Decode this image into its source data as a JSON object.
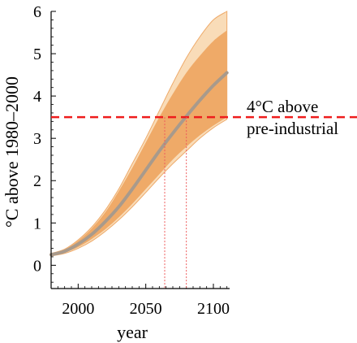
{
  "chart_data": {
    "type": "area",
    "xlabel": "year",
    "ylabel": "°C above 1980–2000",
    "xlim": [
      1980,
      2112
    ],
    "ylim": [
      -0.55,
      6
    ],
    "x_ticks": [
      2000,
      2050,
      2100
    ],
    "x_tick_labels": [
      "2000",
      "2050",
      "2100"
    ],
    "y_ticks": [
      0,
      1,
      2,
      3,
      4,
      5,
      6
    ],
    "y_tick_labels": [
      "0",
      "1",
      "2",
      "3",
      "4",
      "5",
      "6"
    ],
    "x": [
      1980,
      1990,
      2000,
      2010,
      2020,
      2030,
      2040,
      2050,
      2060,
      2070,
      2080,
      2090,
      2100,
      2110
    ],
    "series": [
      {
        "name": "outer_upper",
        "values": [
          0.28,
          0.38,
          0.6,
          0.9,
          1.3,
          1.8,
          2.4,
          3.0,
          3.65,
          4.3,
          4.9,
          5.4,
          5.8,
          6.0
        ]
      },
      {
        "name": "inner_upper",
        "values": [
          0.27,
          0.37,
          0.58,
          0.87,
          1.25,
          1.75,
          2.3,
          2.9,
          3.5,
          4.05,
          4.55,
          4.95,
          5.3,
          5.55
        ]
      },
      {
        "name": "central",
        "values": [
          0.25,
          0.33,
          0.5,
          0.73,
          1.03,
          1.38,
          1.8,
          2.25,
          2.7,
          3.12,
          3.52,
          3.9,
          4.25,
          4.55
        ]
      },
      {
        "name": "inner_lower",
        "values": [
          0.23,
          0.3,
          0.43,
          0.62,
          0.85,
          1.13,
          1.45,
          1.8,
          2.15,
          2.5,
          2.8,
          3.07,
          3.3,
          3.5
        ]
      },
      {
        "name": "outer_lower",
        "values": [
          0.22,
          0.28,
          0.4,
          0.57,
          0.8,
          1.07,
          1.38,
          1.72,
          2.07,
          2.4,
          2.7,
          3.0,
          3.25,
          3.45
        ]
      }
    ],
    "threshold": {
      "y": 3.5,
      "label_line1": "4°C above",
      "label_line2": "pre-industrial"
    },
    "crossing_years": [
      2064,
      2080
    ],
    "colors": {
      "outer_band": "#f9dcb8",
      "inner_band": "#efaa68",
      "band_edge": "#eeaa6a",
      "central_line": "#a89a8c",
      "threshold_line": "#ee1c1c",
      "crossing_line": "#ee5a5a"
    }
  }
}
